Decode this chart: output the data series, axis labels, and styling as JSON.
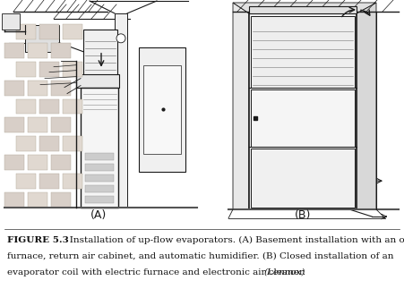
{
  "caption_bold": "FIGURE 5.3",
  "caption_normal": "   Installation of up-flow evaporators. (A) Basement installation with an oil\nfurnace, return air cabinet, and automatic humidifier. (B) Closed installation of an\nevaporator coil with electric furnace and electronic air cleaner. ",
  "caption_italic": "(Lennox)",
  "label_A": "(A)",
  "label_B": "(B)",
  "bg_color": "#ffffff",
  "fig_width": 4.51,
  "fig_height": 3.23,
  "dpi": 100,
  "black": "#1a1a1a",
  "gray_light": "#e8e8e8",
  "gray_med": "#c8c8c8",
  "gray_dark": "#888888"
}
